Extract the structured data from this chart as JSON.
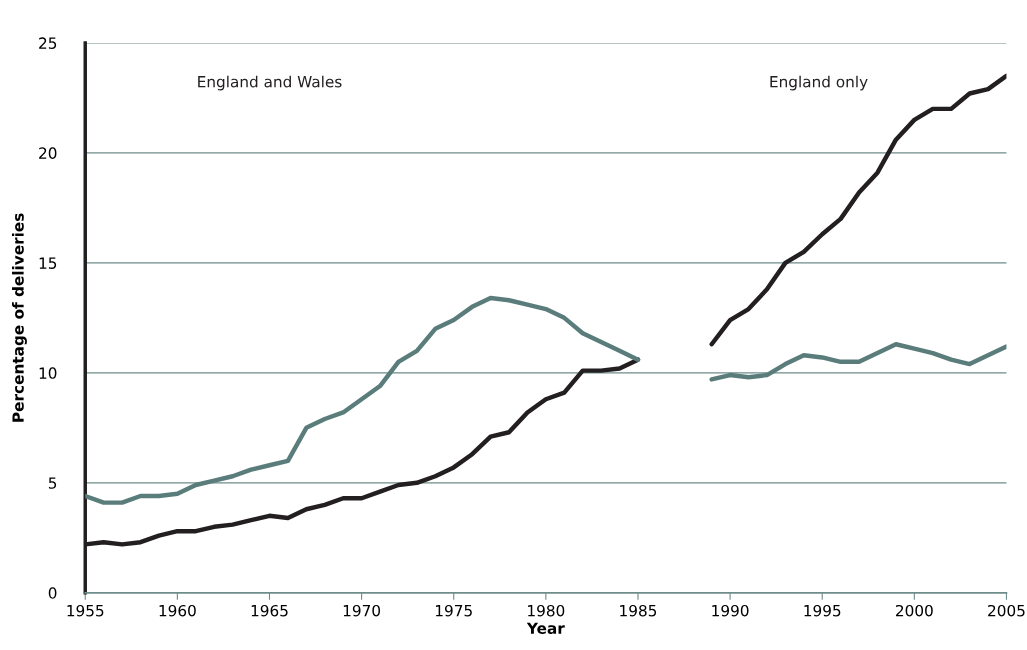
{
  "chart_data": {
    "type": "line",
    "xlabel": "Year",
    "ylabel": "Percentage of deliveries",
    "xlim": [
      1955,
      2005
    ],
    "xticks": [
      1955,
      1960,
      1965,
      1970,
      1975,
      1980,
      1985,
      1990,
      1995,
      2000,
      2005
    ],
    "ylim": [
      0,
      25
    ],
    "yticks": [
      0,
      5,
      10,
      15,
      20,
      25
    ],
    "grid": "y",
    "marker": "none",
    "line_style": "solid",
    "annotations": [
      "England and Wales",
      "England only"
    ],
    "series": [
      {
        "color": "#231f20",
        "x": [
          1955,
          1956,
          1957,
          1958,
          1959,
          1960,
          1961,
          1962,
          1963,
          1964,
          1965,
          1966,
          1967,
          1968,
          1969,
          1970,
          1971,
          1972,
          1973,
          1974,
          1975,
          1976,
          1977,
          1978,
          1979,
          1980,
          1981,
          1982,
          1983,
          1984,
          1985
        ],
        "values": [
          2.2,
          2.3,
          2.2,
          2.3,
          2.6,
          2.8,
          2.8,
          3.0,
          3.1,
          3.3,
          3.5,
          3.4,
          3.8,
          4.0,
          4.3,
          4.3,
          4.6,
          4.9,
          5.0,
          5.3,
          5.7,
          6.3,
          7.1,
          7.3,
          8.2,
          8.8,
          9.1,
          10.1,
          10.1,
          10.2,
          10.6
        ]
      },
      {
        "color": "#5a7d7c",
        "x": [
          1955,
          1956,
          1957,
          1958,
          1959,
          1960,
          1961,
          1962,
          1963,
          1964,
          1965,
          1966,
          1967,
          1968,
          1969,
          1970,
          1971,
          1972,
          1973,
          1974,
          1975,
          1976,
          1977,
          1978,
          1979,
          1980,
          1981,
          1982,
          1983,
          1984,
          1985
        ],
        "values": [
          4.4,
          4.1,
          4.1,
          4.4,
          4.4,
          4.5,
          4.9,
          5.1,
          5.3,
          5.6,
          5.8,
          6.0,
          7.5,
          7.9,
          8.2,
          8.8,
          9.4,
          10.5,
          11.0,
          12.0,
          12.4,
          13.0,
          13.4,
          13.3,
          13.1,
          12.9,
          12.5,
          11.8,
          11.4,
          11.0,
          10.6
        ]
      },
      {
        "color": "#231f20",
        "x": [
          1989,
          1990,
          1991,
          1992,
          1993,
          1994,
          1995,
          1996,
          1997,
          1998,
          1999,
          2000,
          2001,
          2002,
          2003,
          2004,
          2005
        ],
        "values": [
          11.3,
          12.4,
          12.9,
          13.8,
          15.0,
          15.5,
          16.3,
          17.0,
          18.2,
          19.1,
          20.6,
          21.5,
          22.0,
          22.0,
          22.7,
          22.9,
          23.5
        ]
      },
      {
        "color": "#5a7d7c",
        "x": [
          1989,
          1990,
          1991,
          1992,
          1993,
          1994,
          1995,
          1996,
          1997,
          1998,
          1999,
          2000,
          2001,
          2002,
          2003,
          2004,
          2005
        ],
        "values": [
          9.7,
          9.9,
          9.8,
          9.9,
          10.4,
          10.8,
          10.7,
          10.5,
          10.5,
          10.9,
          11.3,
          11.1,
          10.9,
          10.6,
          10.4,
          10.8,
          11.2
        ]
      }
    ]
  }
}
